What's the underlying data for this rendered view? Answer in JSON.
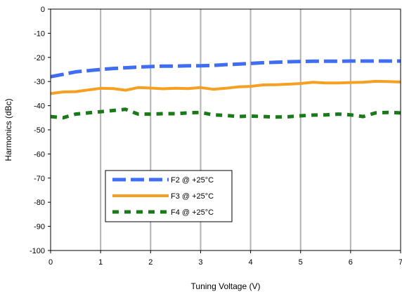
{
  "chart_data": {
    "type": "line",
    "title": "",
    "xlabel": "Tuning Voltage (V)",
    "ylabel": "Harmonics (dBc)",
    "xlim": [
      0,
      7
    ],
    "ylim": [
      -100,
      0
    ],
    "xticks": [
      0,
      1,
      2,
      3,
      4,
      5,
      6,
      7
    ],
    "yticks": [
      0,
      -10,
      -20,
      -30,
      -40,
      -50,
      -60,
      -70,
      -80,
      -90,
      -100
    ],
    "xtick_labels": [
      "0",
      "1",
      "2",
      "3",
      "4",
      "5",
      "6",
      "7"
    ],
    "ytick_labels": [
      "0",
      "-10",
      "-20",
      "-30",
      "-40",
      "-50",
      "-60",
      "-70",
      "-80",
      "-90",
      "-100"
    ],
    "grid": "vertical",
    "legend_position": "lower-left",
    "series": [
      {
        "name": "F2 @ +25°C",
        "color": "#3f6ef5",
        "style": "dashed",
        "x": [
          0,
          0.25,
          0.5,
          0.75,
          1.0,
          1.25,
          1.5,
          1.75,
          2.0,
          2.25,
          2.5,
          2.75,
          3.0,
          3.25,
          3.5,
          3.75,
          4.0,
          4.25,
          4.5,
          4.75,
          5.0,
          5.25,
          5.5,
          5.75,
          6.0,
          6.25,
          6.5,
          6.75,
          7.0
        ],
        "y": [
          -28.0,
          -27.0,
          -26.0,
          -25.5,
          -25.0,
          -24.6,
          -24.3,
          -24.0,
          -23.8,
          -23.6,
          -23.6,
          -23.5,
          -23.5,
          -23.3,
          -23.0,
          -22.8,
          -22.5,
          -22.2,
          -22.0,
          -21.8,
          -21.7,
          -21.6,
          -21.6,
          -21.6,
          -21.5,
          -21.5,
          -21.5,
          -21.5,
          -21.5
        ]
      },
      {
        "name": "F3 @ +25°C",
        "color": "#f5a020",
        "style": "solid",
        "x": [
          0,
          0.25,
          0.5,
          0.75,
          1.0,
          1.25,
          1.5,
          1.75,
          2.0,
          2.25,
          2.5,
          2.75,
          3.0,
          3.25,
          3.5,
          3.75,
          4.0,
          4.25,
          4.5,
          4.75,
          5.0,
          5.25,
          5.5,
          5.75,
          6.0,
          6.25,
          6.5,
          6.75,
          7.0
        ],
        "y": [
          -35.0,
          -34.3,
          -34.2,
          -33.5,
          -32.8,
          -32.9,
          -33.6,
          -32.5,
          -32.7,
          -33.0,
          -32.8,
          -32.9,
          -32.5,
          -33.2,
          -32.8,
          -32.2,
          -32.0,
          -31.4,
          -31.3,
          -31.1,
          -30.8,
          -30.3,
          -30.6,
          -30.6,
          -30.4,
          -30.3,
          -29.9,
          -30.0,
          -30.2
        ]
      },
      {
        "name": "F4 @ +25°C",
        "color": "#1a7a1a",
        "style": "dashed",
        "x": [
          0,
          0.25,
          0.5,
          0.75,
          1.0,
          1.25,
          1.5,
          1.75,
          2.0,
          2.25,
          2.5,
          2.75,
          3.0,
          3.25,
          3.5,
          3.75,
          4.0,
          4.25,
          4.5,
          4.75,
          5.0,
          5.25,
          5.5,
          5.75,
          6.0,
          6.25,
          6.5,
          6.75,
          7.0
        ],
        "y": [
          -44.5,
          -45.0,
          -43.5,
          -43.0,
          -42.5,
          -42.0,
          -41.5,
          -43.5,
          -43.5,
          -43.3,
          -43.3,
          -43.0,
          -42.8,
          -43.8,
          -44.0,
          -44.5,
          -44.3,
          -44.5,
          -44.7,
          -44.6,
          -44.2,
          -43.9,
          -43.8,
          -43.5,
          -43.8,
          -44.5,
          -43.0,
          -42.8,
          -43.0
        ]
      }
    ]
  }
}
